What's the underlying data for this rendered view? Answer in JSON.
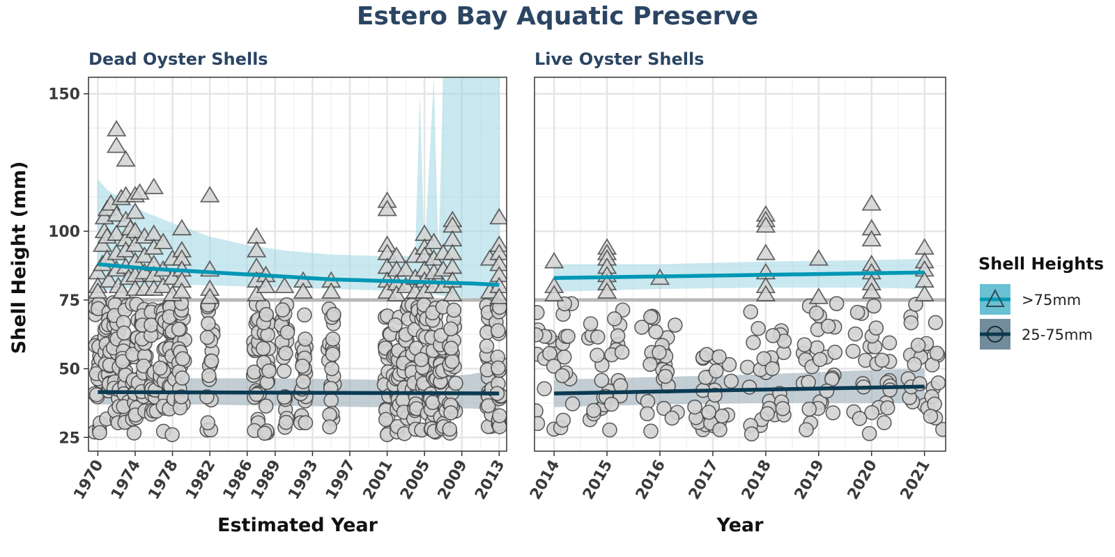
{
  "chart_data": {
    "type": "scatter",
    "title": "Estero Bay Aquatic Preserve",
    "ylabel": "Shell Height (mm)",
    "ylim": [
      20,
      156
    ],
    "yticks": [
      25,
      50,
      75,
      100,
      150
    ],
    "reference_line_y": 75,
    "grid": true,
    "colors": {
      "large": "#0097b5",
      "large_band": "#9fd6e2",
      "small": "#0b3a52",
      "small_band": "#9aacb7",
      "point_fill": "#d3d3d3",
      "point_stroke": "#4a4a4a",
      "refline": "#b8b8b8",
      "title": "#2b4563"
    },
    "legend": {
      "title": "Shell Heights",
      "position": "right",
      "items": [
        {
          "label": ">75mm",
          "symbol": "triangle",
          "color": "#0097b5"
        },
        {
          "label": "25-75mm",
          "symbol": "circle",
          "color": "#0b3a52"
        }
      ]
    },
    "panels": [
      {
        "subtitle": "Dead Oyster Shells",
        "xlabel": "Estimated Year",
        "xlim": [
          1969,
          2013.8
        ],
        "xticks": [
          1970,
          1974,
          1978,
          1982,
          1986,
          1989,
          1993,
          1997,
          2001,
          2005,
          2009,
          2013
        ],
        "minor_grid_x": [
          1972,
          1976,
          1980,
          1984,
          1987.5,
          1991,
          1995,
          1999,
          2003,
          2007,
          2011
        ],
        "point_years": [
          1970,
          1971,
          1972,
          1973,
          1974,
          1975,
          1976,
          1977,
          1978,
          1979,
          1982,
          1987,
          1988,
          1990,
          1992,
          1995,
          2001,
          2002,
          2003,
          2004,
          2005,
          2006,
          2007,
          2008,
          2012,
          2013
        ],
        "triangles": [
          {
            "x": 1970,
            "y": 85
          },
          {
            "x": 1970,
            "y": 80
          },
          {
            "x": 1970,
            "y": 78
          },
          {
            "x": 1970.5,
            "y": 95
          },
          {
            "x": 1970.5,
            "y": 88
          },
          {
            "x": 1970.7,
            "y": 100
          },
          {
            "x": 1970.7,
            "y": 105
          },
          {
            "x": 1971,
            "y": 108
          },
          {
            "x": 1971,
            "y": 98
          },
          {
            "x": 1971,
            "y": 90
          },
          {
            "x": 1971.2,
            "y": 82
          },
          {
            "x": 1971.4,
            "y": 110
          },
          {
            "x": 1972,
            "y": 137
          },
          {
            "x": 1972,
            "y": 131
          },
          {
            "x": 1972,
            "y": 106
          },
          {
            "x": 1972,
            "y": 99
          },
          {
            "x": 1972,
            "y": 92
          },
          {
            "x": 1972,
            "y": 86
          },
          {
            "x": 1972.2,
            "y": 80
          },
          {
            "x": 1972.5,
            "y": 112
          },
          {
            "x": 1972.6,
            "y": 78
          },
          {
            "x": 1973,
            "y": 126
          },
          {
            "x": 1973,
            "y": 113
          },
          {
            "x": 1973,
            "y": 104
          },
          {
            "x": 1973,
            "y": 97
          },
          {
            "x": 1973,
            "y": 93
          },
          {
            "x": 1973,
            "y": 87
          },
          {
            "x": 1973.3,
            "y": 83
          },
          {
            "x": 1973.5,
            "y": 101
          },
          {
            "x": 1974,
            "y": 113
          },
          {
            "x": 1974,
            "y": 107
          },
          {
            "x": 1974,
            "y": 100
          },
          {
            "x": 1974,
            "y": 95
          },
          {
            "x": 1974,
            "y": 89
          },
          {
            "x": 1974,
            "y": 84
          },
          {
            "x": 1974,
            "y": 79
          },
          {
            "x": 1974.5,
            "y": 114
          },
          {
            "x": 1975,
            "y": 98
          },
          {
            "x": 1975,
            "y": 91
          },
          {
            "x": 1975,
            "y": 85
          },
          {
            "x": 1975,
            "y": 79
          },
          {
            "x": 1976,
            "y": 116
          },
          {
            "x": 1976,
            "y": 99
          },
          {
            "x": 1976,
            "y": 94
          },
          {
            "x": 1976,
            "y": 88
          },
          {
            "x": 1976,
            "y": 84
          },
          {
            "x": 1976,
            "y": 79
          },
          {
            "x": 1977,
            "y": 96
          },
          {
            "x": 1977,
            "y": 86
          },
          {
            "x": 1977,
            "y": 80
          },
          {
            "x": 1978,
            "y": 90
          },
          {
            "x": 1978,
            "y": 83
          },
          {
            "x": 1978,
            "y": 77
          },
          {
            "x": 1979,
            "y": 101
          },
          {
            "x": 1979,
            "y": 93
          },
          {
            "x": 1979,
            "y": 90
          },
          {
            "x": 1979,
            "y": 86
          },
          {
            "x": 1979,
            "y": 82
          },
          {
            "x": 1979,
            "y": 78
          },
          {
            "x": 1982,
            "y": 113
          },
          {
            "x": 1982,
            "y": 86
          },
          {
            "x": 1982,
            "y": 79
          },
          {
            "x": 1982,
            "y": 76
          },
          {
            "x": 1987,
            "y": 98
          },
          {
            "x": 1987,
            "y": 93
          },
          {
            "x": 1987,
            "y": 87
          },
          {
            "x": 1987,
            "y": 82
          },
          {
            "x": 1987,
            "y": 77
          },
          {
            "x": 1988,
            "y": 84
          },
          {
            "x": 1988,
            "y": 80
          },
          {
            "x": 1990,
            "y": 80
          },
          {
            "x": 1992,
            "y": 82
          },
          {
            "x": 1992,
            "y": 78
          },
          {
            "x": 1995,
            "y": 82
          },
          {
            "x": 1995,
            "y": 78
          },
          {
            "x": 2001,
            "y": 111
          },
          {
            "x": 2001,
            "y": 108
          },
          {
            "x": 2001,
            "y": 95
          },
          {
            "x": 2001,
            "y": 92
          },
          {
            "x": 2001,
            "y": 87
          },
          {
            "x": 2001,
            "y": 82
          },
          {
            "x": 2001,
            "y": 78
          },
          {
            "x": 2002,
            "y": 91
          },
          {
            "x": 2002,
            "y": 86
          },
          {
            "x": 2002,
            "y": 81
          },
          {
            "x": 2002,
            "y": 77
          },
          {
            "x": 2003,
            "y": 86
          },
          {
            "x": 2003,
            "y": 80
          },
          {
            "x": 2004,
            "y": 91
          },
          {
            "x": 2004,
            "y": 83
          },
          {
            "x": 2004,
            "y": 78
          },
          {
            "x": 2005,
            "y": 99
          },
          {
            "x": 2005,
            "y": 94
          },
          {
            "x": 2005,
            "y": 91
          },
          {
            "x": 2005,
            "y": 86
          },
          {
            "x": 2005,
            "y": 82
          },
          {
            "x": 2005,
            "y": 78
          },
          {
            "x": 2006,
            "y": 96
          },
          {
            "x": 2006,
            "y": 90
          },
          {
            "x": 2006,
            "y": 85
          },
          {
            "x": 2006,
            "y": 80
          },
          {
            "x": 2007,
            "y": 92
          },
          {
            "x": 2007,
            "y": 86
          },
          {
            "x": 2007,
            "y": 80
          },
          {
            "x": 2008,
            "y": 104
          },
          {
            "x": 2008,
            "y": 102
          },
          {
            "x": 2008,
            "y": 97
          },
          {
            "x": 2008,
            "y": 92
          },
          {
            "x": 2008,
            "y": 87
          },
          {
            "x": 2008,
            "y": 82
          },
          {
            "x": 2008,
            "y": 77
          },
          {
            "x": 2012,
            "y": 90
          },
          {
            "x": 2012,
            "y": 78
          },
          {
            "x": 2013,
            "y": 105
          },
          {
            "x": 2013,
            "y": 95
          },
          {
            "x": 2013,
            "y": 92
          },
          {
            "x": 2013,
            "y": 88
          },
          {
            "x": 2013,
            "y": 84
          },
          {
            "x": 2013,
            "y": 80
          },
          {
            "x": 2013,
            "y": 76
          }
        ],
        "large_trend": {
          "x": [
            1970,
            1975,
            1980,
            1985,
            1990,
            1995,
            2000,
            2005,
            2010,
            2013
          ],
          "y": [
            88,
            86.5,
            85.5,
            84.5,
            83.5,
            82.5,
            82,
            81.5,
            81,
            80.5
          ]
        },
        "large_band": {
          "upper": [
            [
              1970,
              119
            ],
            [
              1971,
              115
            ],
            [
              1973,
              111
            ],
            [
              1975,
              107
            ],
            [
              1978,
              103
            ],
            [
              1982,
              98
            ],
            [
              1986,
              95
            ],
            [
              1990,
              93
            ],
            [
              1995,
              91.5
            ],
            [
              2000,
              91
            ],
            [
              2004,
              91
            ],
            [
              2004.5,
              150
            ],
            [
              2005,
              92
            ],
            [
              2006,
              156
            ],
            [
              2006.5,
              91
            ],
            [
              2007,
              156
            ],
            [
              2013,
              156
            ]
          ],
          "lower": [
            [
              1970,
              78
            ],
            [
              1975,
              80
            ],
            [
              1980,
              80.5
            ],
            [
              1985,
              80
            ],
            [
              1990,
              79.5
            ],
            [
              1995,
              79
            ],
            [
              2000,
              78.5
            ],
            [
              2004,
              78
            ],
            [
              2006,
              77
            ],
            [
              2008,
              76
            ],
            [
              2013,
              75
            ]
          ]
        },
        "small_trend": {
          "x": [
            1970,
            2013
          ],
          "y": [
            41.5,
            41
          ]
        },
        "small_band": {
          "x": [
            1970,
            1980,
            1990,
            2000,
            2005,
            2010,
            2013
          ],
          "upper": [
            46.5,
            46.5,
            46.5,
            46,
            46.5,
            48,
            50
          ],
          "lower": [
            37,
            37,
            36.5,
            36,
            36,
            35.5,
            35
          ]
        }
      },
      {
        "subtitle": "Live Oyster Shells",
        "xlabel": "Year",
        "xlim": [
          2013.63,
          2021.4
        ],
        "xticks": [
          2014,
          2015,
          2016,
          2017,
          2018,
          2019,
          2020,
          2021
        ],
        "minor_grid_x": [
          2014.5,
          2015.5,
          2016.5,
          2017.5,
          2018.5,
          2019.5,
          2020.5
        ],
        "point_years": [
          2014,
          2015,
          2016,
          2017,
          2018,
          2019,
          2020,
          2021
        ],
        "triangles": [
          {
            "x": 2014,
            "y": 89
          },
          {
            "x": 2014,
            "y": 80
          },
          {
            "x": 2014,
            "y": 77
          },
          {
            "x": 2015,
            "y": 94
          },
          {
            "x": 2015,
            "y": 92
          },
          {
            "x": 2015,
            "y": 90
          },
          {
            "x": 2015,
            "y": 87
          },
          {
            "x": 2015,
            "y": 84
          },
          {
            "x": 2015,
            "y": 81
          },
          {
            "x": 2015,
            "y": 78
          },
          {
            "x": 2016,
            "y": 83
          },
          {
            "x": 2018,
            "y": 106
          },
          {
            "x": 2018,
            "y": 104
          },
          {
            "x": 2018,
            "y": 102
          },
          {
            "x": 2018,
            "y": 92
          },
          {
            "x": 2018,
            "y": 85
          },
          {
            "x": 2018,
            "y": 80
          },
          {
            "x": 2018,
            "y": 77
          },
          {
            "x": 2019,
            "y": 90
          },
          {
            "x": 2019,
            "y": 76
          },
          {
            "x": 2020,
            "y": 110
          },
          {
            "x": 2020,
            "y": 101
          },
          {
            "x": 2020,
            "y": 97
          },
          {
            "x": 2020,
            "y": 88
          },
          {
            "x": 2020,
            "y": 85
          },
          {
            "x": 2020,
            "y": 81
          },
          {
            "x": 2020,
            "y": 78
          },
          {
            "x": 2021,
            "y": 94
          },
          {
            "x": 2021,
            "y": 89
          },
          {
            "x": 2021,
            "y": 86
          },
          {
            "x": 2021,
            "y": 82
          },
          {
            "x": 2021,
            "y": 77
          }
        ],
        "large_trend": {
          "x": [
            2014,
            2021
          ],
          "y": [
            83,
            85
          ]
        },
        "large_band": {
          "x": [
            2014,
            2016,
            2018,
            2020,
            2021
          ],
          "upper": [
            88,
            88,
            89,
            89.5,
            90
          ],
          "lower": [
            78,
            79,
            79.5,
            79.5,
            79
          ]
        },
        "small_trend": {
          "x": [
            2014,
            2021
          ],
          "y": [
            41,
            43.5
          ]
        },
        "small_band": {
          "x": [
            2014,
            2016,
            2018,
            2020,
            2021
          ],
          "upper": [
            46,
            47,
            48,
            49.5,
            50
          ],
          "lower": [
            36,
            37,
            37.5,
            37.5,
            37.5
          ]
        }
      }
    ]
  }
}
